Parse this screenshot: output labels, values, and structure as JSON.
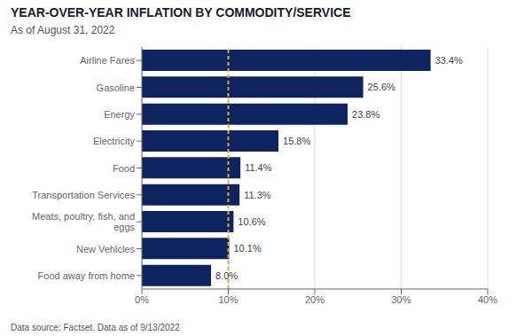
{
  "chart_data": {
    "type": "bar",
    "orientation": "horizontal",
    "title": "YEAR-OVER-YEAR INFLATION BY COMMODITY/SERVICE",
    "subtitle": "As of August 31, 2022",
    "footnote": "Data source: Factset. Data as of 9/13/2022",
    "categories": [
      "Food away from home",
      "New Vehicles",
      "Meats, poultry, fish, and\neggs",
      "Transportation Services",
      "Food",
      "Electricity",
      "Energy",
      "Gasoline",
      "Airline Fares"
    ],
    "values": [
      8.0,
      10.1,
      10.6,
      11.3,
      11.4,
      15.8,
      23.8,
      25.6,
      33.4
    ],
    "value_labels": [
      "8.0%",
      "10.1%",
      "10.6%",
      "11.3%",
      "11.4%",
      "15.8%",
      "23.8%",
      "25.6%",
      "33.4%"
    ],
    "data_labels": true,
    "color": "#0d2461",
    "xlim": [
      0,
      40
    ],
    "xticks": [
      {
        "value": 0,
        "label": "0%"
      },
      {
        "value": 10,
        "label": "10%"
      },
      {
        "value": 20,
        "label": "20%"
      },
      {
        "value": 30,
        "label": "30%"
      },
      {
        "value": 40,
        "label": "40%"
      }
    ],
    "grid": true,
    "reference_lines": [
      {
        "x": 10.0,
        "color": "#e8a838",
        "line_style": "dashed"
      }
    ]
  }
}
